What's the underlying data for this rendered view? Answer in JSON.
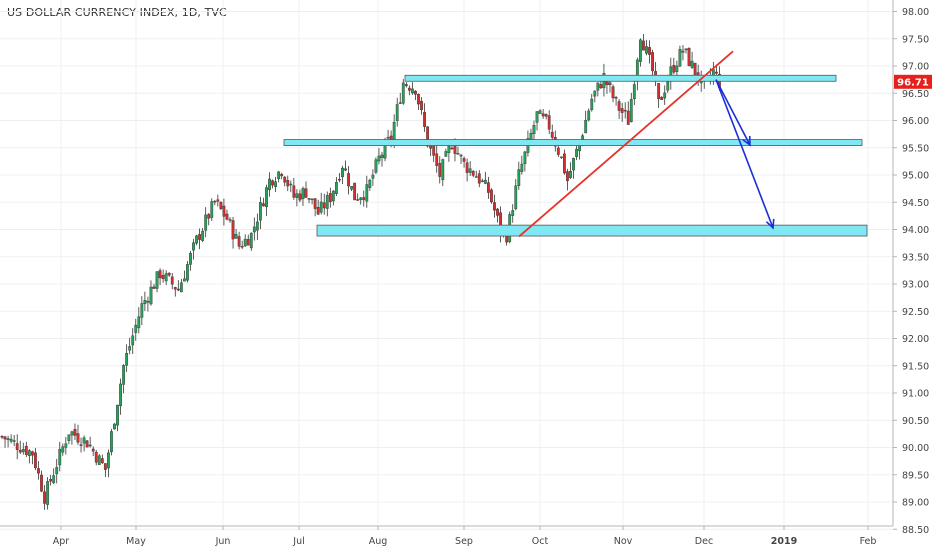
{
  "chart_data": {
    "type": "candlestick",
    "title": "US DOLLAR CURRENCY INDEX, 1D, TVC",
    "yaxis": {
      "min": 88.5,
      "max": 98.0,
      "step": 0.5,
      "ticks": [
        "98.00",
        "97.50",
        "97.00",
        "96.50",
        "96.00",
        "95.50",
        "95.00",
        "94.50",
        "94.00",
        "93.50",
        "93.00",
        "92.50",
        "92.00",
        "91.50",
        "91.00",
        "90.50",
        "90.00",
        "89.50",
        "89.00",
        "88.50"
      ]
    },
    "xaxis": {
      "labels": [
        "Apr",
        "May",
        "Jun",
        "Jul",
        "Aug",
        "Sep",
        "Oct",
        "Nov",
        "Dec",
        "2019",
        "Feb"
      ]
    },
    "current_price": {
      "label": "96.71",
      "value": 96.71,
      "color": "#e8201c"
    },
    "colors": {
      "up": "#26a15a",
      "down": "#d32f2f",
      "zone_fill": "#80e8f4",
      "trendline": "#e5332a",
      "arrow": "#1a2fd8",
      "grid": "#edf0f3",
      "axis_text": "#444444"
    },
    "zones": [
      {
        "name": "resistance-zone",
        "low": 96.73,
        "high": 96.83,
        "x_from": "Aug",
        "x_to": "Feb"
      },
      {
        "name": "middle-zone",
        "low": 95.55,
        "high": 95.65,
        "x_from": "Jun",
        "x_to": "Feb"
      },
      {
        "name": "support-zone",
        "low": 93.88,
        "high": 94.08,
        "x_from": "Jul",
        "x_to": "Feb"
      }
    ],
    "trendline": {
      "from_value": 93.87,
      "to_value": 97.27
    },
    "arrows": [
      {
        "from_value": 96.75,
        "to_value": 95.55
      },
      {
        "from_value": 96.75,
        "to_value": 94.03
      }
    ],
    "candles": []
  }
}
